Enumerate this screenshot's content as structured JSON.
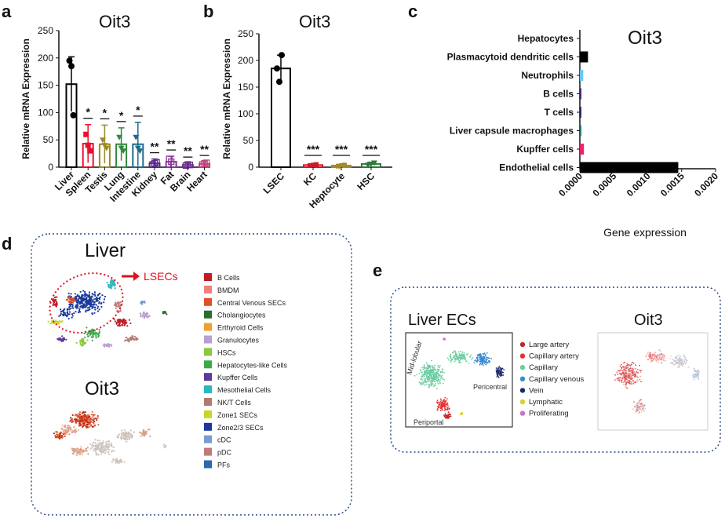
{
  "panel_labels": {
    "a": "a",
    "b": "b",
    "c": "c",
    "d": "d",
    "e": "e"
  },
  "colors": {
    "liver": "#000000",
    "spleen": "#e8112d",
    "testis": "#9c8b27",
    "lung": "#2f8a3b",
    "intestine": "#1f6b8f",
    "kidney": "#5a2a8c",
    "fat": "#8a3a9a",
    "brain": "#6a2f8a",
    "heart": "#c0407a",
    "kc": "#d1162a",
    "heptocyte": "#a08a2a",
    "hsc": "#2e7a3a",
    "hepatocytes": "#444444",
    "pdc": "#000000",
    "neutrophils": "#6cc6ee",
    "bcells": "#3a2a7a",
    "tcells": "#2a2a66",
    "lcm": "#2a7a7a",
    "kupffer": "#e8246e",
    "endothelial": "#000000"
  },
  "chart_data": [
    {
      "type": "bar",
      "panel": "a",
      "title": "Oit3",
      "ylabel": "Relative mRNA Expression",
      "ylim": [
        0,
        250
      ],
      "yticks": [
        "0",
        "50",
        "100",
        "150",
        "200",
        "250"
      ],
      "categories": [
        "Liver",
        "Spleen",
        "Testis",
        "Lung",
        "Intestine",
        "Kidney",
        "Fat",
        "Brain",
        "Heart"
      ],
      "values": [
        152,
        43,
        42,
        42,
        42,
        7,
        10,
        4,
        6
      ],
      "errors": [
        50,
        35,
        35,
        30,
        40,
        8,
        10,
        3,
        4
      ],
      "significance": [
        "",
        "*",
        "*",
        "*",
        "*",
        "**",
        "**",
        "**",
        "**"
      ],
      "points": [
        [
          195,
          185,
          95
        ],
        [
          60,
          40,
          30
        ],
        [
          50,
          40,
          35
        ],
        [
          55,
          35,
          30
        ],
        [
          55,
          35,
          30
        ],
        [
          5,
          7,
          9
        ],
        [
          15,
          10,
          5
        ],
        [
          3,
          5,
          4
        ],
        [
          5,
          7,
          8
        ]
      ]
    },
    {
      "type": "bar",
      "panel": "b",
      "title": "Oit3",
      "ylabel": "Relative mRNA Expression",
      "ylim": [
        0,
        250
      ],
      "yticks": [
        "0",
        "50",
        "100",
        "150",
        "200",
        "250"
      ],
      "categories": [
        "LSEC",
        "KC",
        "Heptocyte",
        "HSC"
      ],
      "values": [
        185,
        4,
        3,
        6
      ],
      "errors": [
        25,
        2,
        2,
        3
      ],
      "significance": [
        "",
        "***",
        "***",
        "***"
      ],
      "points": [
        [
          210,
          185,
          160
        ],
        [
          3,
          4,
          5
        ],
        [
          2,
          3,
          4
        ],
        [
          4,
          6,
          8
        ]
      ]
    },
    {
      "type": "bar",
      "orientation": "horizontal",
      "panel": "c",
      "title": "Oit3",
      "xlabel": "Gene expression",
      "xlim": [
        0,
        0.002
      ],
      "xticks": [
        "0.0000",
        "0.0005",
        "0.0010",
        "0.0015",
        "0.0020"
      ],
      "categories": [
        "Hepatocytes",
        "Plasmacytoid dendritic cells",
        "Neutrophils",
        "B cells",
        "T cells",
        "Liver capsule macrophages",
        "Kupffer cells",
        "Endothelial cells"
      ],
      "values": [
        0.0,
        0.00012,
        5e-05,
        2e-05,
        2e-05,
        2e-05,
        6e-05,
        0.00145
      ]
    }
  ],
  "panel_d": {
    "title_liver": "Liver",
    "title_oit3": "Oit3",
    "arrow_label": "LSECs",
    "legend": [
      {
        "label": "B Cells",
        "color": "#c01c28"
      },
      {
        "label": "BMDM",
        "color": "#f08080"
      },
      {
        "label": "Central Venous SECs",
        "color": "#e0502a"
      },
      {
        "label": "Cholangiocytes",
        "color": "#2f6b2f"
      },
      {
        "label": "Erthyroid Cells",
        "color": "#f0a030"
      },
      {
        "label": "Granulocytes",
        "color": "#b8a0d0"
      },
      {
        "label": "HSCs",
        "color": "#8dc63f"
      },
      {
        "label": "Hepatocytes-like Cells",
        "color": "#3aaa4a"
      },
      {
        "label": "Kupffer Cells",
        "color": "#5a3a9a"
      },
      {
        "label": "Mesothelial Cells",
        "color": "#2ab8c0"
      },
      {
        "label": "NK/T Cells",
        "color": "#b07a70"
      },
      {
        "label": "Zone1 SECs",
        "color": "#c8d62a"
      },
      {
        "label": "Zone2/3 SECs",
        "color": "#1a3a9a"
      },
      {
        "label": "cDC",
        "color": "#7a9ad0"
      },
      {
        "label": "pDC",
        "color": "#c07a7a"
      },
      {
        "label": "PFs",
        "color": "#2a6aa8"
      }
    ]
  },
  "panel_e": {
    "title_liver": "Liver ECs",
    "title_oit3": "Oit3",
    "region_midlobular": "Mid-lobular",
    "region_pericentral": "Pericentral",
    "region_periportal": "Periportal",
    "legend": [
      {
        "label": "Large artery",
        "color": "#c0282a"
      },
      {
        "label": "Capillary artery",
        "color": "#e83030"
      },
      {
        "label": "Capillary",
        "color": "#6ccba0"
      },
      {
        "label": "Capillary venous",
        "color": "#3a8ad0"
      },
      {
        "label": "Vein",
        "color": "#1a2a6a"
      },
      {
        "label": "Lymphatic",
        "color": "#d8d030"
      },
      {
        "label": "Proliferating",
        "color": "#d070c0"
      }
    ]
  }
}
